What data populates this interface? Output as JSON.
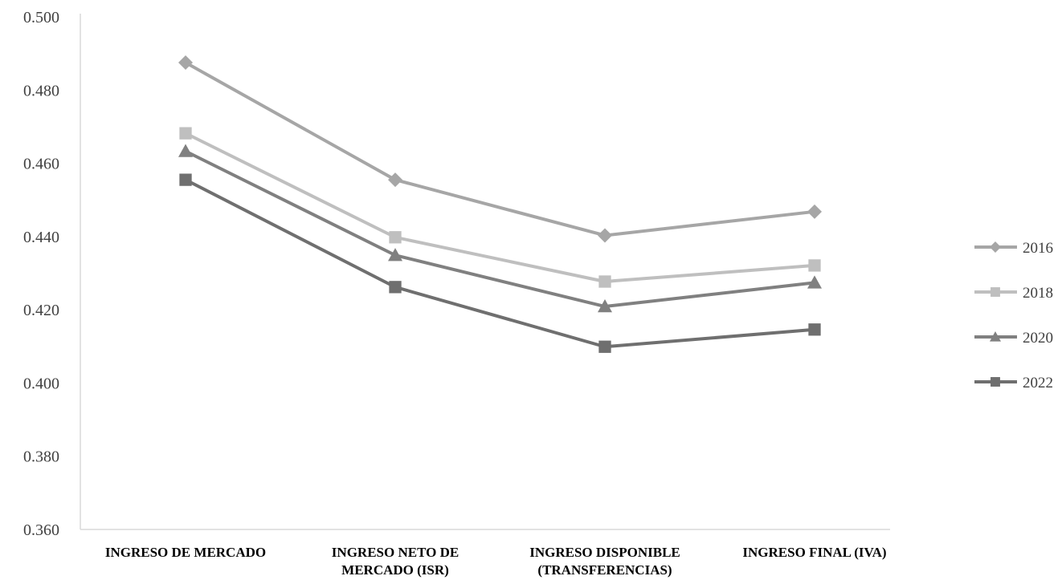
{
  "chart_data": {
    "type": "line",
    "title": "",
    "xlabel": "",
    "ylabel": "",
    "categories": [
      [
        "INGRESO DE MERCADO"
      ],
      [
        "INGRESO NETO DE",
        "MERCADO (ISR)"
      ],
      [
        "INGRESO DISPONIBLE",
        "(TRANSFERENCIAS)"
      ],
      [
        "INGRESO FINAL (IVA)"
      ]
    ],
    "ylim": [
      0.36,
      0.5
    ],
    "yticks": [
      "0.360",
      "0.380",
      "0.400",
      "0.420",
      "0.440",
      "0.460",
      "0.480",
      "0.500"
    ],
    "grid": false,
    "legend_position": "right",
    "series": [
      {
        "name": "2016",
        "values": [
          0.4875,
          0.4555,
          0.4403,
          0.4468
        ],
        "color": "#a6a6a6",
        "marker": "diamond"
      },
      {
        "name": "2018",
        "values": [
          0.4682,
          0.4398,
          0.4277,
          0.4321
        ],
        "color": "#bfbfbf",
        "marker": "square"
      },
      {
        "name": "2020",
        "values": [
          0.4633,
          0.4349,
          0.4209,
          0.4274
        ],
        "color": "#808080",
        "marker": "triangle"
      },
      {
        "name": "2022",
        "values": [
          0.4555,
          0.4262,
          0.4099,
          0.4146
        ],
        "color": "#6f6f6f",
        "marker": "square"
      }
    ]
  }
}
